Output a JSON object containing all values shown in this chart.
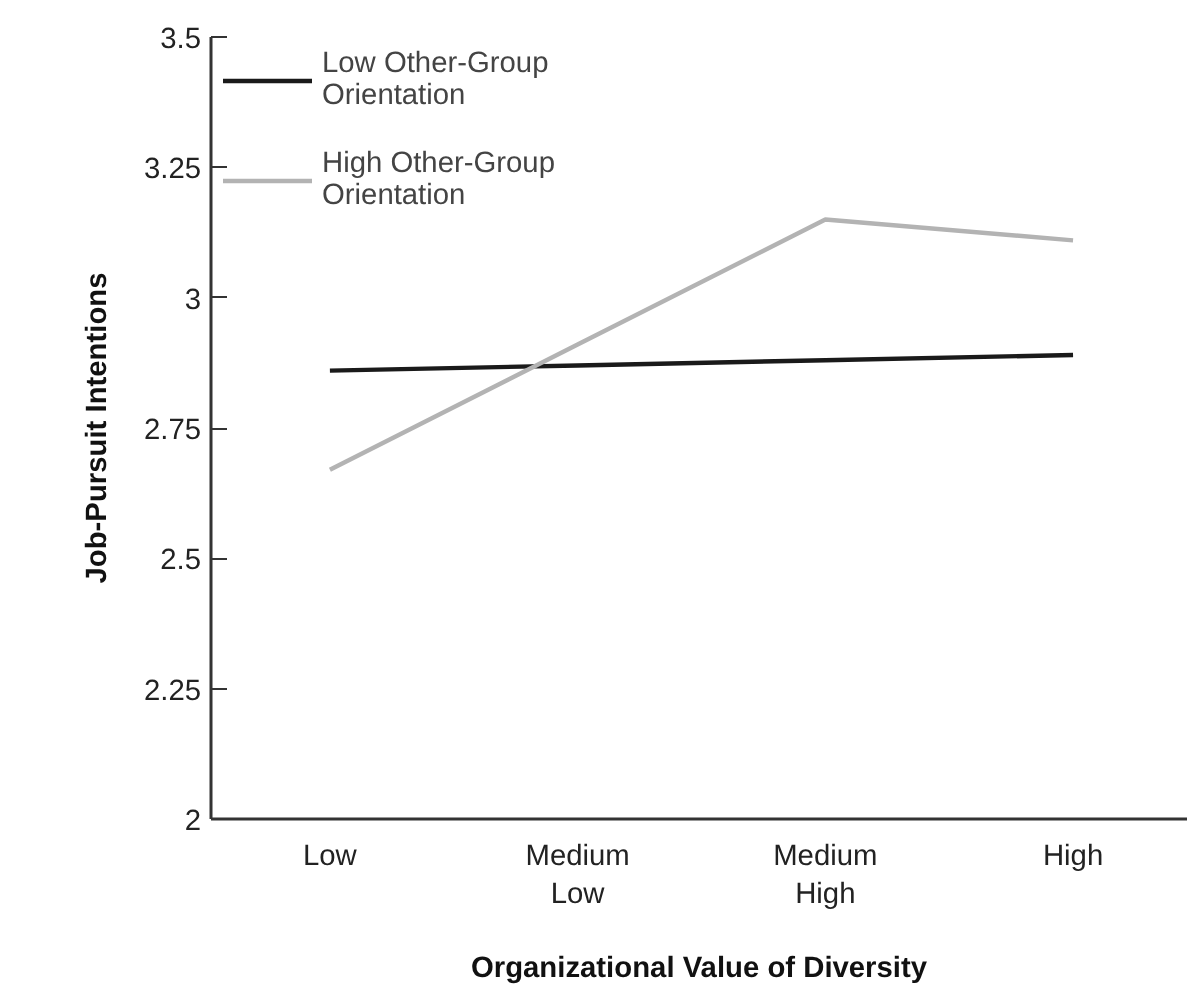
{
  "chart_data": {
    "type": "line",
    "xlabel": "Organizational Value of Diversity",
    "ylabel": "Job-Pursuit Intentions",
    "categories": [
      "Low",
      "Medium Low",
      "Medium High",
      "High"
    ],
    "series": [
      {
        "name": "Low Other-Group Orientation",
        "color": "#1a1a1a",
        "values": [
          2.86,
          2.87,
          2.88,
          2.89
        ]
      },
      {
        "name": "High Other-Group Orientation",
        "color": "#b3b3b3",
        "values": [
          2.67,
          2.91,
          3.15,
          3.11
        ]
      }
    ],
    "ylim": [
      2,
      3.5
    ],
    "yticks": [
      2,
      2.25,
      2.5,
      2.75,
      3,
      3.25,
      3.5
    ],
    "grid": false,
    "legend": "top left",
    "marker": "none",
    "line_style": "solid"
  }
}
